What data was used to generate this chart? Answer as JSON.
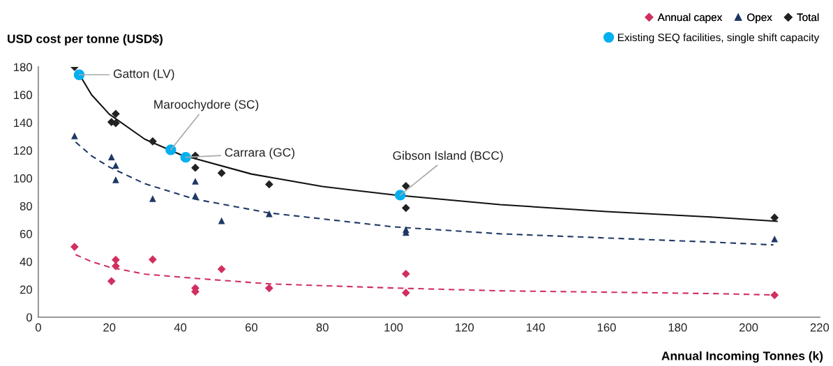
{
  "chart_data": {
    "type": "scatter",
    "ylabel": "USD cost per tonne (USD$)",
    "xlabel": "Annual Incoming Tonnes (k)",
    "xlim": [
      0,
      220
    ],
    "xticks": [
      0,
      20,
      40,
      60,
      80,
      100,
      120,
      140,
      160,
      180,
      200,
      220
    ],
    "ylim": [
      0,
      180
    ],
    "yticks": [
      0,
      20,
      40,
      60,
      80,
      100,
      120,
      140,
      160,
      180
    ],
    "grid": false,
    "legend": "top right",
    "series": [
      {
        "name": "Annual capex",
        "marker": "diamond",
        "color": "#d0305f",
        "x": [
          10.2,
          20.6,
          21.8,
          21.8,
          32.2,
          44.2,
          44.2,
          51.6,
          65,
          103.5,
          103.5,
          207.3
        ],
        "values": [
          50.6,
          25.9,
          41.3,
          36.8,
          41.5,
          20.9,
          18.4,
          34.6,
          20.9,
          31.2,
          17.6,
          15.9
        ]
      },
      {
        "name": "Opex",
        "marker": "triangle",
        "color": "#1f3864",
        "x": [
          10.2,
          20.6,
          21.8,
          21.8,
          32.2,
          44.2,
          44.2,
          51.6,
          65,
          103.5,
          103.5,
          207.3
        ],
        "values": [
          130.4,
          115.3,
          109.2,
          98.9,
          85.3,
          97.8,
          87.3,
          69.4,
          74.4,
          63,
          61,
          56.3
        ]
      },
      {
        "name": "Total",
        "marker": "diamond",
        "color": "#222222",
        "x": [
          10.2,
          20.6,
          21.8,
          21.8,
          32.2,
          44.2,
          44.2,
          51.6,
          65,
          103.5,
          103.5,
          207.3
        ],
        "values": [
          180,
          140.4,
          146.3,
          139.6,
          126.5,
          116.2,
          107.5,
          103.7,
          95.6,
          94.4,
          78.6,
          71.6
        ]
      },
      {
        "name": "Existing SEQ facilities, single shift capacity",
        "marker": "circle",
        "color": "#00b0f0",
        "x": [
          11.5,
          37.3,
          41.5,
          101.9
        ],
        "values": [
          174.4,
          120.4,
          115,
          87.8
        ]
      },
      {
        "type": "line",
        "marker": "none",
        "line_style": "dashed",
        "color": "#d0305f",
        "x": [
          10.5,
          15,
          20,
          30,
          44,
          65,
          100,
          130,
          160,
          190,
          207
        ],
        "values": [
          45,
          40,
          36,
          31,
          28,
          24,
          21,
          19,
          18,
          17,
          16
        ]
      },
      {
        "type": "line",
        "marker": "none",
        "line_style": "dashed",
        "color": "#1f3864",
        "x": [
          10.5,
          15,
          20,
          30,
          44,
          65,
          100,
          130,
          160,
          190,
          207
        ],
        "values": [
          126,
          116,
          108,
          96,
          85,
          75,
          65,
          60,
          57,
          54,
          52
        ]
      },
      {
        "type": "line",
        "marker": "none",
        "line_style": "solid",
        "color": "#111111",
        "x": [
          11,
          15,
          20,
          30,
          40,
          60,
          80,
          100,
          130,
          160,
          190,
          208
        ],
        "values": [
          177,
          160,
          146,
          128,
          117,
          103,
          94,
          88,
          81,
          76,
          72,
          69
        ]
      }
    ],
    "annotations": [
      {
        "text": "Gatton (LV)",
        "x": 11.5,
        "y": 174.4
      },
      {
        "text": "Maroochydore (SC)",
        "x": 37.3,
        "y": 120.4
      },
      {
        "text": "Carrara (GC)",
        "x": 41.5,
        "y": 115
      },
      {
        "text": "Gibson Island (BCC)",
        "x": 101.9,
        "y": 87.8
      }
    ]
  }
}
